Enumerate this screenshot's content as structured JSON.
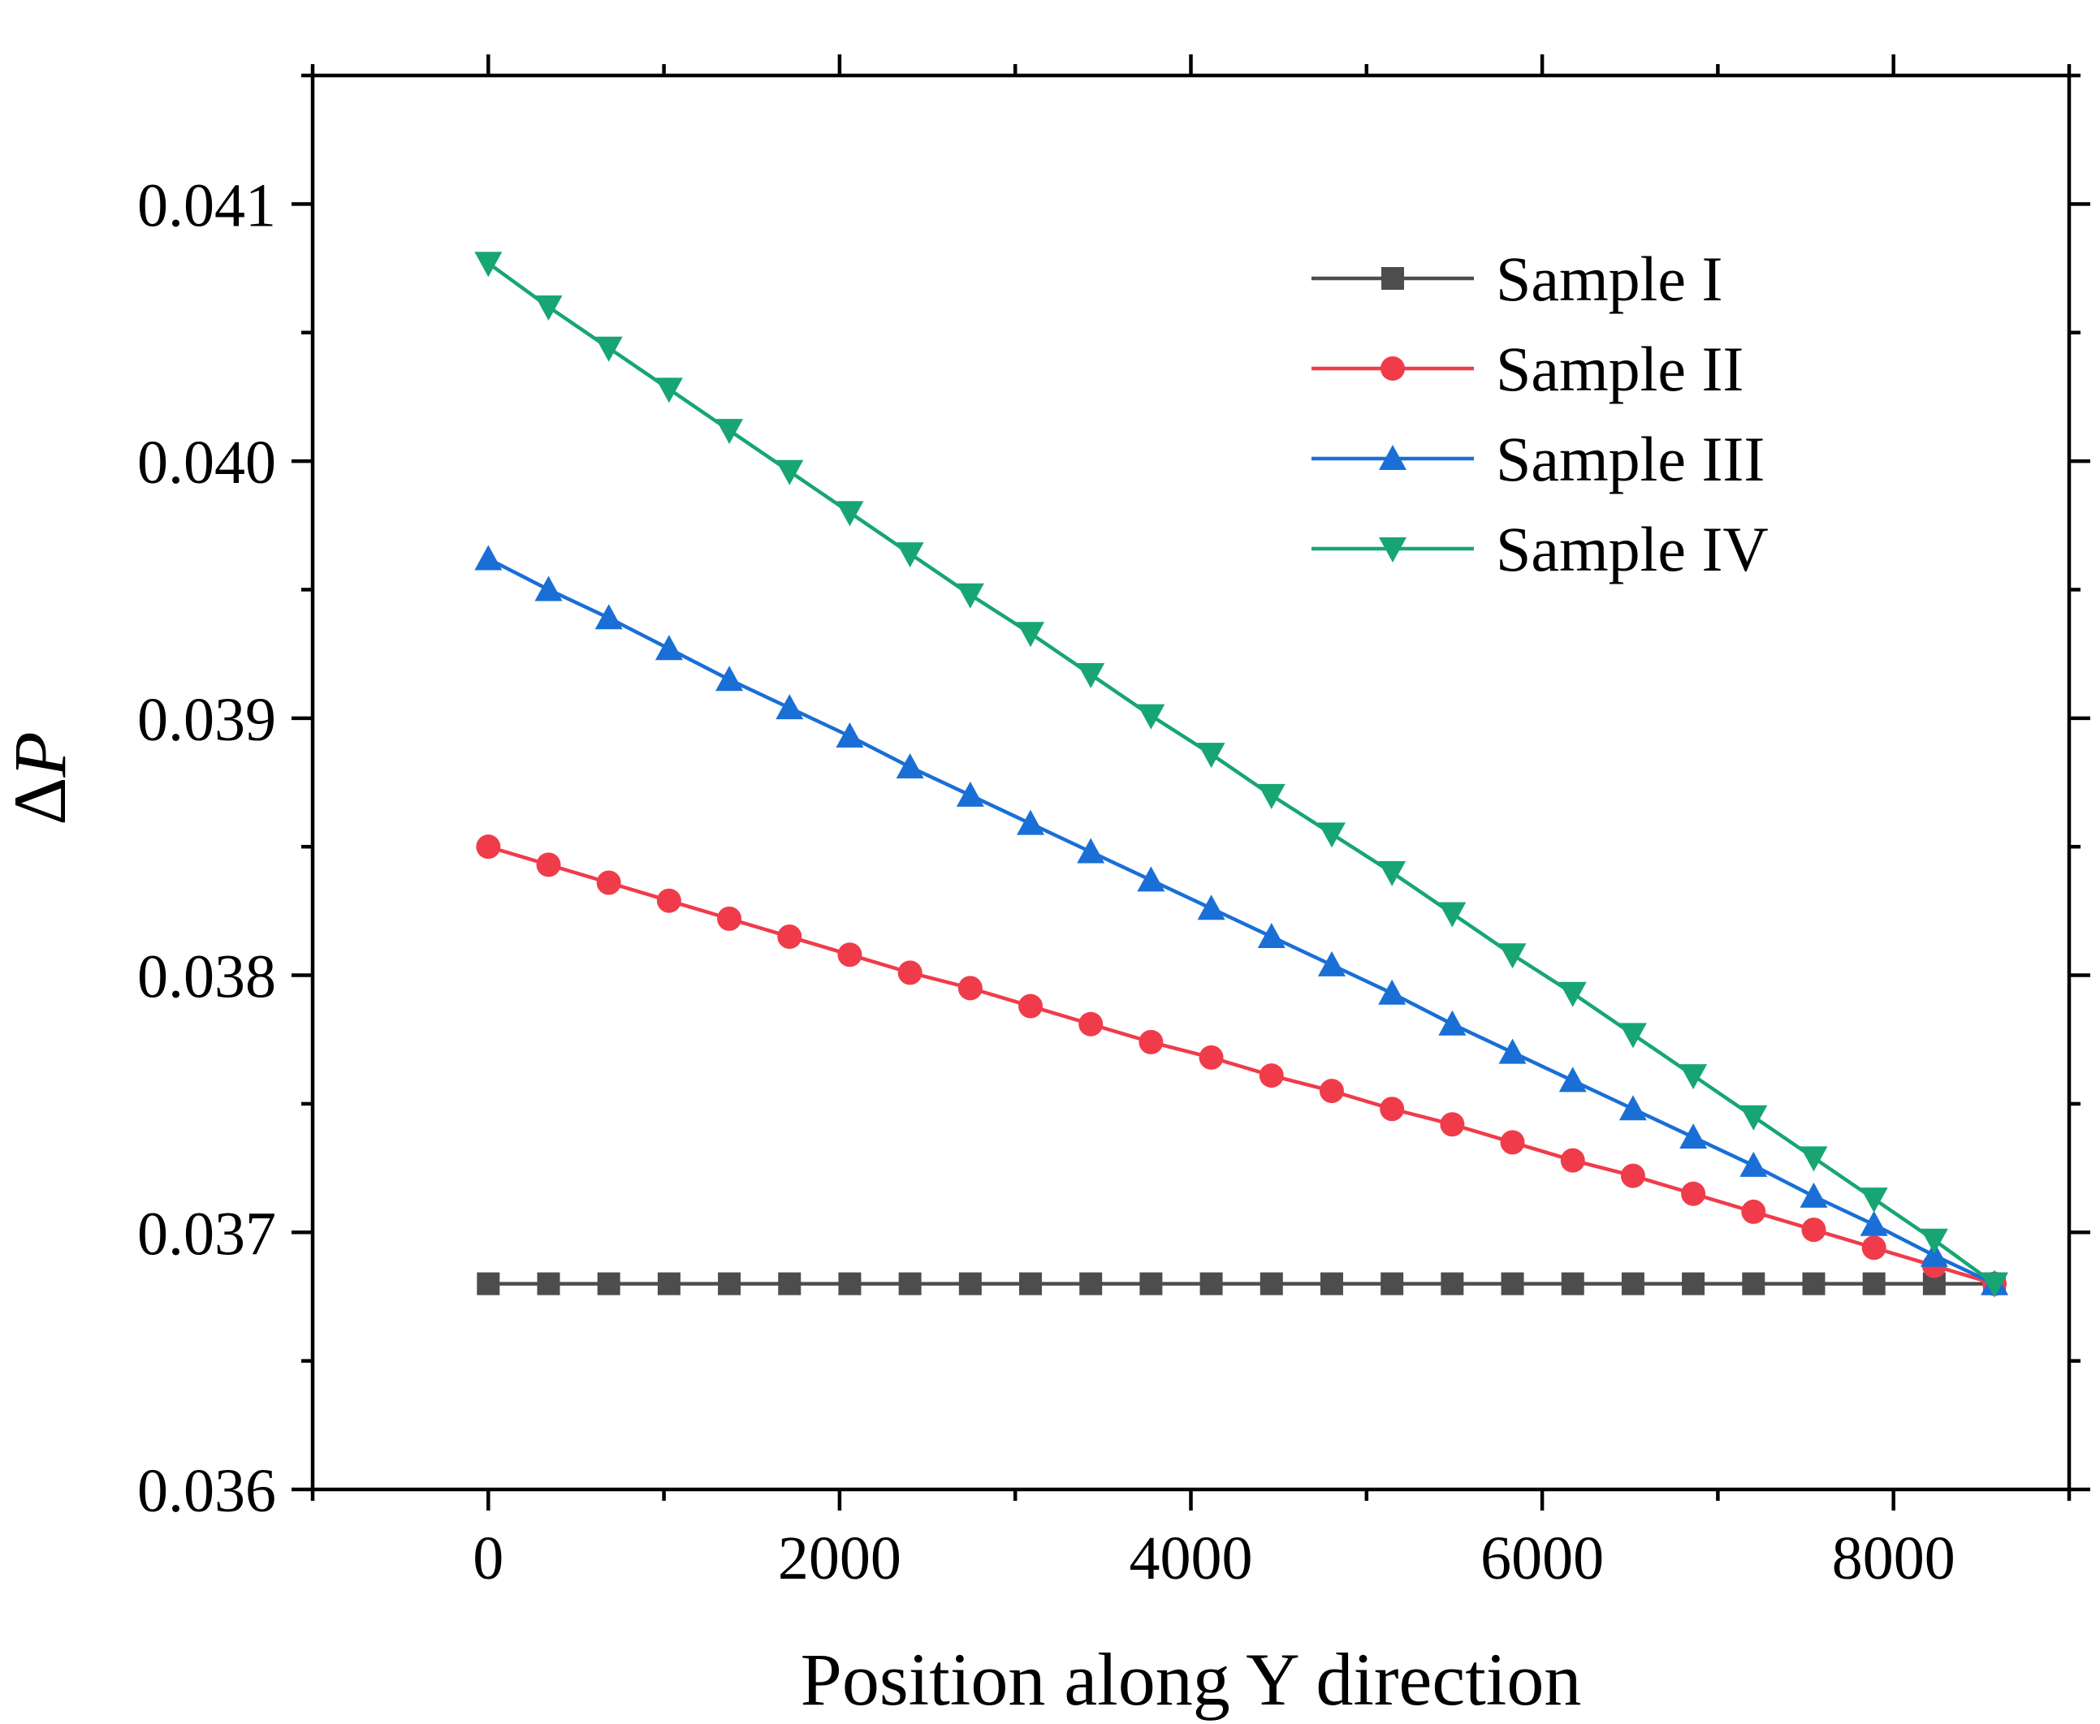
{
  "chart_data": {
    "type": "line",
    "title": "",
    "xlabel": "Position along Y direction",
    "ylabel_symbol": "Δ",
    "ylabel_var": "P",
    "xlim": [
      -1000,
      9000
    ],
    "ylim": [
      0.036,
      0.0415
    ],
    "xticks": [
      0,
      2000,
      4000,
      6000,
      8000
    ],
    "xtick_labels": [
      "0",
      "2000",
      "4000",
      "6000",
      "8000"
    ],
    "yticks": [
      0.036,
      0.037,
      0.038,
      0.039,
      0.04,
      0.041
    ],
    "ytick_labels": [
      "0.036",
      "0.037",
      "0.038",
      "0.039",
      "0.040",
      "0.041"
    ],
    "grid": false,
    "legend_position": "top-right",
    "x": [
      0,
      343,
      686,
      1029,
      1372,
      1715,
      2058,
      2401,
      2744,
      3087,
      3430,
      3773,
      4116,
      4459,
      4802,
      5145,
      5488,
      5831,
      6174,
      6517,
      6860,
      7203,
      7546,
      7889,
      8232,
      8575
    ],
    "series": [
      {
        "name": "Sample I",
        "color": "#4d4d4d",
        "marker": "square",
        "values": [
          0.0368,
          0.0368,
          0.0368,
          0.0368,
          0.0368,
          0.0368,
          0.0368,
          0.0368,
          0.0368,
          0.0368,
          0.0368,
          0.0368,
          0.0368,
          0.0368,
          0.0368,
          0.0368,
          0.0368,
          0.0368,
          0.0368,
          0.0368,
          0.0368,
          0.0368,
          0.0368,
          0.0368,
          0.0368,
          0.0368
        ]
      },
      {
        "name": "Sample II",
        "color": "#f03c4a",
        "marker": "circle",
        "values": [
          0.0385,
          0.03843,
          0.03836,
          0.03829,
          0.03822,
          0.03815,
          0.03808,
          0.03801,
          0.03795,
          0.03788,
          0.03781,
          0.03774,
          0.03768,
          0.03761,
          0.03755,
          0.03748,
          0.03742,
          0.03735,
          0.03728,
          0.03722,
          0.03715,
          0.03708,
          0.03701,
          0.03694,
          0.03687,
          0.0368
        ]
      },
      {
        "name": "Sample III",
        "color": "#1a6fd6",
        "marker": "triangle-up",
        "values": [
          0.03962,
          0.0395,
          0.03939,
          0.03927,
          0.03915,
          0.03904,
          0.03893,
          0.03881,
          0.0387,
          0.03859,
          0.03848,
          0.03837,
          0.03826,
          0.03815,
          0.03804,
          0.03793,
          0.03781,
          0.0377,
          0.03759,
          0.03748,
          0.03737,
          0.03726,
          0.03714,
          0.03703,
          0.03691,
          0.0368
        ]
      },
      {
        "name": "Sample IV",
        "color": "#17a673",
        "marker": "triangle-down",
        "values": [
          0.04077,
          0.0406,
          0.04044,
          0.04028,
          0.04012,
          0.03996,
          0.0398,
          0.03964,
          0.03948,
          0.03933,
          0.03917,
          0.03901,
          0.03886,
          0.0387,
          0.03855,
          0.0384,
          0.03824,
          0.03808,
          0.03793,
          0.03777,
          0.03761,
          0.03745,
          0.03729,
          0.03713,
          0.03697,
          0.0368
        ]
      }
    ]
  }
}
